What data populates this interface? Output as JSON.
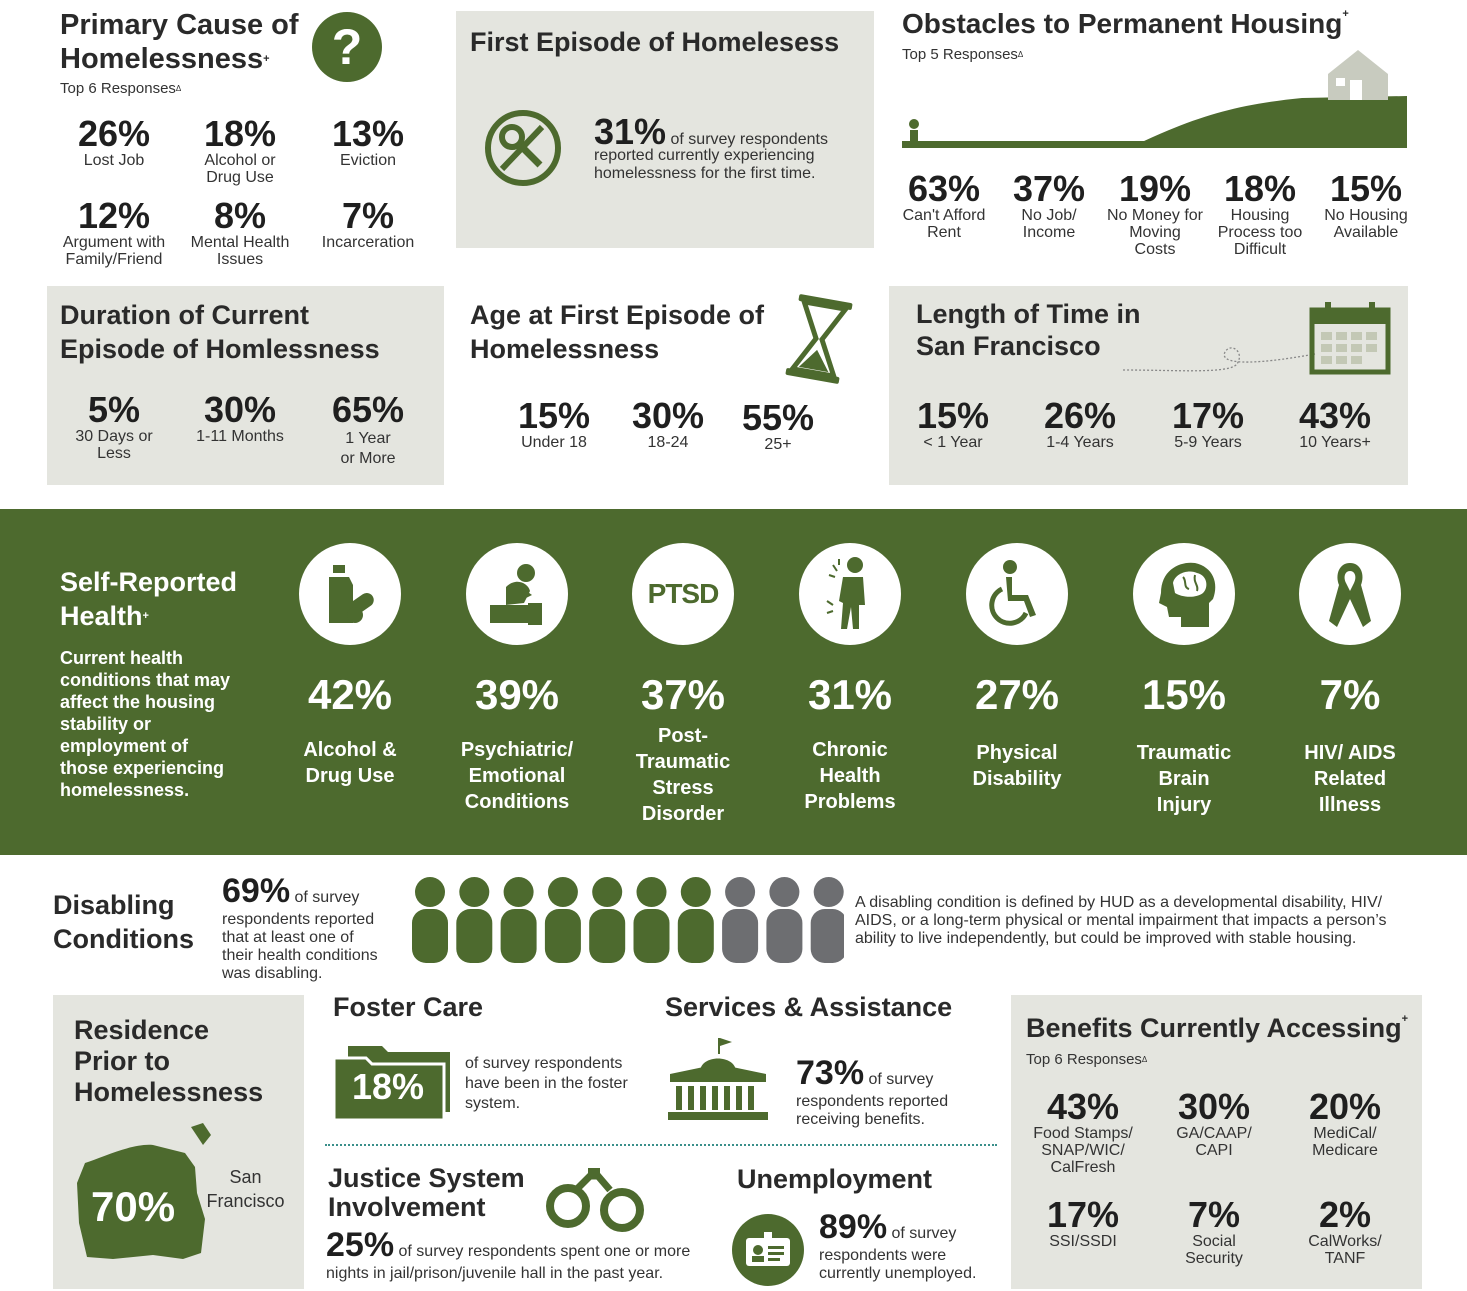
{
  "colors": {
    "brand_green": "#4d6a2e",
    "panel_gray": "#e4e5df",
    "person_gray": "#6d6e71"
  },
  "primary_cause": {
    "title_line1": "Primary Cause of",
    "title_line2": "Homelessness",
    "title_sup": "+",
    "subtitle": "Top 6 Responses",
    "subtitle_sup": "Δ",
    "icon": "question-icon",
    "items": [
      {
        "value": "26%",
        "label1": "Lost Job",
        "label2": ""
      },
      {
        "value": "18%",
        "label1": "Alcohol or",
        "label2": "Drug Use"
      },
      {
        "value": "13%",
        "label1": "Eviction",
        "label2": ""
      },
      {
        "value": "12%",
        "label1": "Argument with",
        "label2": "Family/Friend"
      },
      {
        "value": "8%",
        "label1": "Mental Health",
        "label2": "Issues"
      },
      {
        "value": "7%",
        "label1": "Incarceration",
        "label2": ""
      }
    ]
  },
  "first_episode": {
    "title": "First Episode of Homelesess",
    "icon": "no-key-icon",
    "value": "31%",
    "text1": "of survey respondents",
    "text2": "reported currently experiencing",
    "text3": "homelessness for the first time."
  },
  "obstacles": {
    "title": "Obstacles to Permanent Housing",
    "title_sup": "+",
    "subtitle": "Top 5 Responses",
    "subtitle_sup": "Δ",
    "items": [
      {
        "value": "63%",
        "label1": "Can't Afford",
        "label2": "Rent",
        "label3": ""
      },
      {
        "value": "37%",
        "label1": "No Job/",
        "label2": "Income",
        "label3": ""
      },
      {
        "value": "19%",
        "label1": "No Money for",
        "label2": "Moving",
        "label3": "Costs"
      },
      {
        "value": "18%",
        "label1": "Housing",
        "label2": "Process too",
        "label3": "Difficult"
      },
      {
        "value": "15%",
        "label1": "No Housing",
        "label2": "Available",
        "label3": ""
      }
    ]
  },
  "duration": {
    "title_line1": "Duration of Current",
    "title_line2": "Episode of Homlessness",
    "items": [
      {
        "value": "5%",
        "label1": "30 Days or",
        "label2": "Less"
      },
      {
        "value": "30%",
        "label1": "1-11 Months",
        "label2": ""
      },
      {
        "value": "65%",
        "label1": "1 Year",
        "label2": "or More"
      }
    ]
  },
  "age_first": {
    "title_line1": "Age at First Episode of",
    "title_line2": "Homelessness",
    "icon": "hourglass-icon",
    "items": [
      {
        "value": "15%",
        "label": "Under 18"
      },
      {
        "value": "30%",
        "label": "18-24"
      },
      {
        "value": "55%",
        "label": "25+"
      }
    ]
  },
  "length_sf": {
    "title_line1": "Length of Time in",
    "title_line2": "San Francisco",
    "icon": "calendar-icon",
    "items": [
      {
        "value": "15%",
        "label": "< 1 Year"
      },
      {
        "value": "26%",
        "label": "1-4 Years"
      },
      {
        "value": "17%",
        "label": "5-9 Years"
      },
      {
        "value": "43%",
        "label": "10 Years+"
      }
    ]
  },
  "health": {
    "title_line1": "Self-Reported",
    "title_line2": "Health",
    "title_sup": "+",
    "desc": [
      "Current health",
      "conditions that may",
      "affect the housing",
      "stability or",
      "employment of",
      "those experiencing",
      "homelessness."
    ],
    "ptsd_icon_text": "PTSD",
    "items": [
      {
        "value": "42%",
        "labels": [
          "Alcohol &",
          "Drug Use"
        ],
        "icon": "bottle-pills-icon"
      },
      {
        "value": "39%",
        "labels": [
          "Psychiatric/",
          "Emotional",
          "Conditions"
        ],
        "icon": "distressed-person-icon"
      },
      {
        "value": "37%",
        "labels": [
          "Post-",
          "Traumatic",
          "Stress",
          "Disorder"
        ],
        "icon": "ptsd-icon"
      },
      {
        "value": "31%",
        "labels": [
          "Chronic",
          "Health",
          "Problems"
        ],
        "icon": "back-pain-icon"
      },
      {
        "value": "27%",
        "labels": [
          "Physical",
          "Disability"
        ],
        "icon": "wheelchair-icon"
      },
      {
        "value": "15%",
        "labels": [
          "Traumatic",
          "Brain",
          "Injury"
        ],
        "icon": "brain-head-icon"
      },
      {
        "value": "7%",
        "labels": [
          "HIV/ AIDS",
          "Related",
          "Illness"
        ],
        "icon": "ribbon-icon"
      }
    ]
  },
  "disabling": {
    "title_line1": "Disabling",
    "title_line2": "Conditions",
    "value": "69%",
    "text": [
      "of survey",
      "respondents reported",
      "that at least one of",
      "their health conditions",
      "was disabling."
    ],
    "people_share": 0.69,
    "definition": [
      "A disabling condition is defined by HUD as a developmental disability, HIV/",
      "AIDS, or a long-term physical or mental impairment that impacts a person’s",
      "ability to live independently, but could be improved with stable housing."
    ]
  },
  "residence": {
    "title": [
      "Residence",
      "Prior to",
      "Homelessness"
    ],
    "value": "70%",
    "place1": "San",
    "place2": "Francisco",
    "icon": "sf-map-icon"
  },
  "foster": {
    "title": "Foster Care",
    "value": "18%",
    "text": [
      "of survey respondents",
      "have been in the foster",
      "system."
    ],
    "icon": "folder-icon"
  },
  "services": {
    "title": "Services & Assistance",
    "value": "73%",
    "text1": "of survey",
    "text2": "respondents reported",
    "text3": "receiving benefits.",
    "icon": "government-building-icon"
  },
  "justice": {
    "title_line1": "Justice System",
    "title_line2": "Involvement",
    "value": "25%",
    "text1": "of survey respondents spent one or more",
    "text2": "nights in jail/prison/juvenile hall in the past year.",
    "icon": "handcuffs-icon"
  },
  "unemployment": {
    "title": "Unemployment",
    "value": "89%",
    "text1": "of survey",
    "text2": "respondents were",
    "text3": "currently unemployed.",
    "icon": "id-card-icon"
  },
  "benefits": {
    "title": "Benefits Currently Accessing",
    "title_sup": "+",
    "subtitle": "Top 6 Responses",
    "subtitle_sup": "Δ",
    "items": [
      {
        "value": "43%",
        "labels": [
          "Food Stamps/",
          "SNAP/WIC/",
          "CalFresh"
        ]
      },
      {
        "value": "30%",
        "labels": [
          "GA/CAAP/",
          "CAPI"
        ]
      },
      {
        "value": "20%",
        "labels": [
          "MediCal/",
          "Medicare"
        ]
      },
      {
        "value": "17%",
        "labels": [
          "SSI/SSDI"
        ]
      },
      {
        "value": "7%",
        "labels": [
          "Social",
          "Security"
        ]
      },
      {
        "value": "2%",
        "labels": [
          "CalWorks/",
          "TANF"
        ]
      }
    ]
  }
}
